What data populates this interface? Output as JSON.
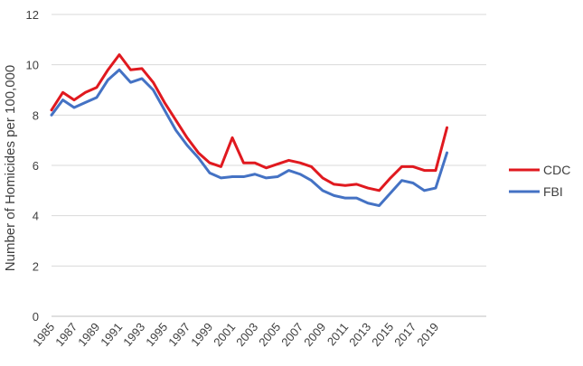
{
  "chart_data": {
    "type": "line",
    "title": "",
    "xlabel": "",
    "ylabel": "Number of Homicides per 100,000",
    "ylim": [
      0,
      12
    ],
    "yticks": [
      0,
      2,
      4,
      6,
      8,
      10,
      12
    ],
    "xlim": [
      1985,
      2020
    ],
    "xtick_labels": [
      "1985",
      "1987",
      "1989",
      "1991",
      "1993",
      "1995",
      "1997",
      "1999",
      "2001",
      "2003",
      "2005",
      "2007",
      "2009",
      "2011",
      "2013",
      "2015",
      "2017",
      "2019"
    ],
    "grid": true,
    "legend_position": "right",
    "x": [
      1985,
      1986,
      1987,
      1988,
      1989,
      1990,
      1991,
      1992,
      1993,
      1994,
      1995,
      1996,
      1997,
      1998,
      1999,
      2000,
      2001,
      2002,
      2003,
      2004,
      2005,
      2006,
      2007,
      2008,
      2009,
      2010,
      2011,
      2012,
      2013,
      2014,
      2015,
      2016,
      2017,
      2018,
      2019,
      2020
    ],
    "series": [
      {
        "name": "CDC",
        "color": "#e0191f",
        "values": [
          8.2,
          8.9,
          8.6,
          8.9,
          9.1,
          9.8,
          10.4,
          9.8,
          9.85,
          9.3,
          8.5,
          7.8,
          7.1,
          6.5,
          6.1,
          5.95,
          7.1,
          6.1,
          6.1,
          5.9,
          6.05,
          6.2,
          6.1,
          5.95,
          5.5,
          5.25,
          5.2,
          5.25,
          5.1,
          5.0,
          5.5,
          5.95,
          5.95,
          5.8,
          5.8,
          7.5
        ]
      },
      {
        "name": "FBI",
        "color": "#4472c4",
        "values": [
          8.0,
          8.6,
          8.3,
          8.5,
          8.7,
          9.4,
          9.8,
          9.3,
          9.45,
          9.0,
          8.2,
          7.4,
          6.8,
          6.3,
          5.7,
          5.5,
          5.55,
          5.55,
          5.65,
          5.5,
          5.55,
          5.8,
          5.65,
          5.4,
          5.0,
          4.8,
          4.7,
          4.7,
          4.5,
          4.4,
          4.9,
          5.4,
          5.3,
          5.0,
          5.1,
          6.5
        ]
      }
    ]
  }
}
